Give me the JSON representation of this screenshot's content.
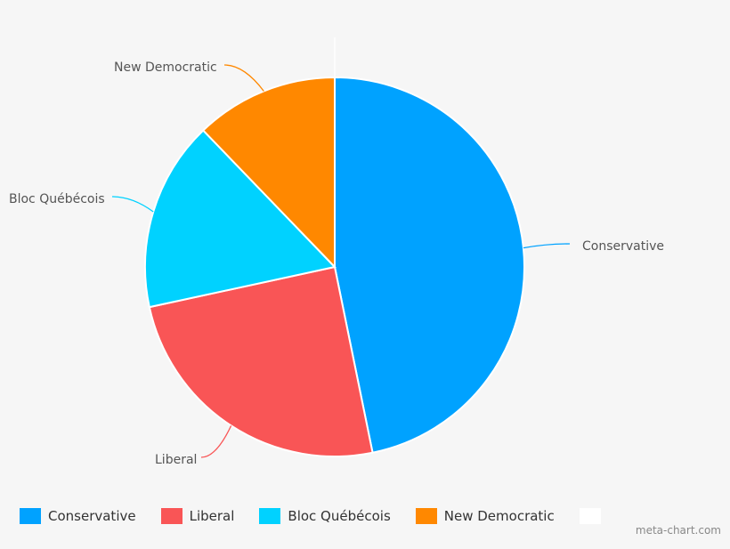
{
  "chart_data": {
    "type": "pie",
    "start_angle_deg": 0,
    "direction": "clockwise",
    "slices": [
      {
        "label": "Conservative",
        "value": 46.8,
        "color": "#00a2ff"
      },
      {
        "label": "Liberal",
        "value": 24.8,
        "color": "#f95556"
      },
      {
        "label": "Bloc Québécois",
        "value": 16.2,
        "color": "#00d2ff"
      },
      {
        "label": "New Democratic",
        "value": 12.2,
        "color": "#ff8800"
      },
      {
        "label": "",
        "value": 0,
        "color": "#ffffff"
      }
    ],
    "legend_position": "bottom"
  },
  "watermark": "meta-chart.com"
}
